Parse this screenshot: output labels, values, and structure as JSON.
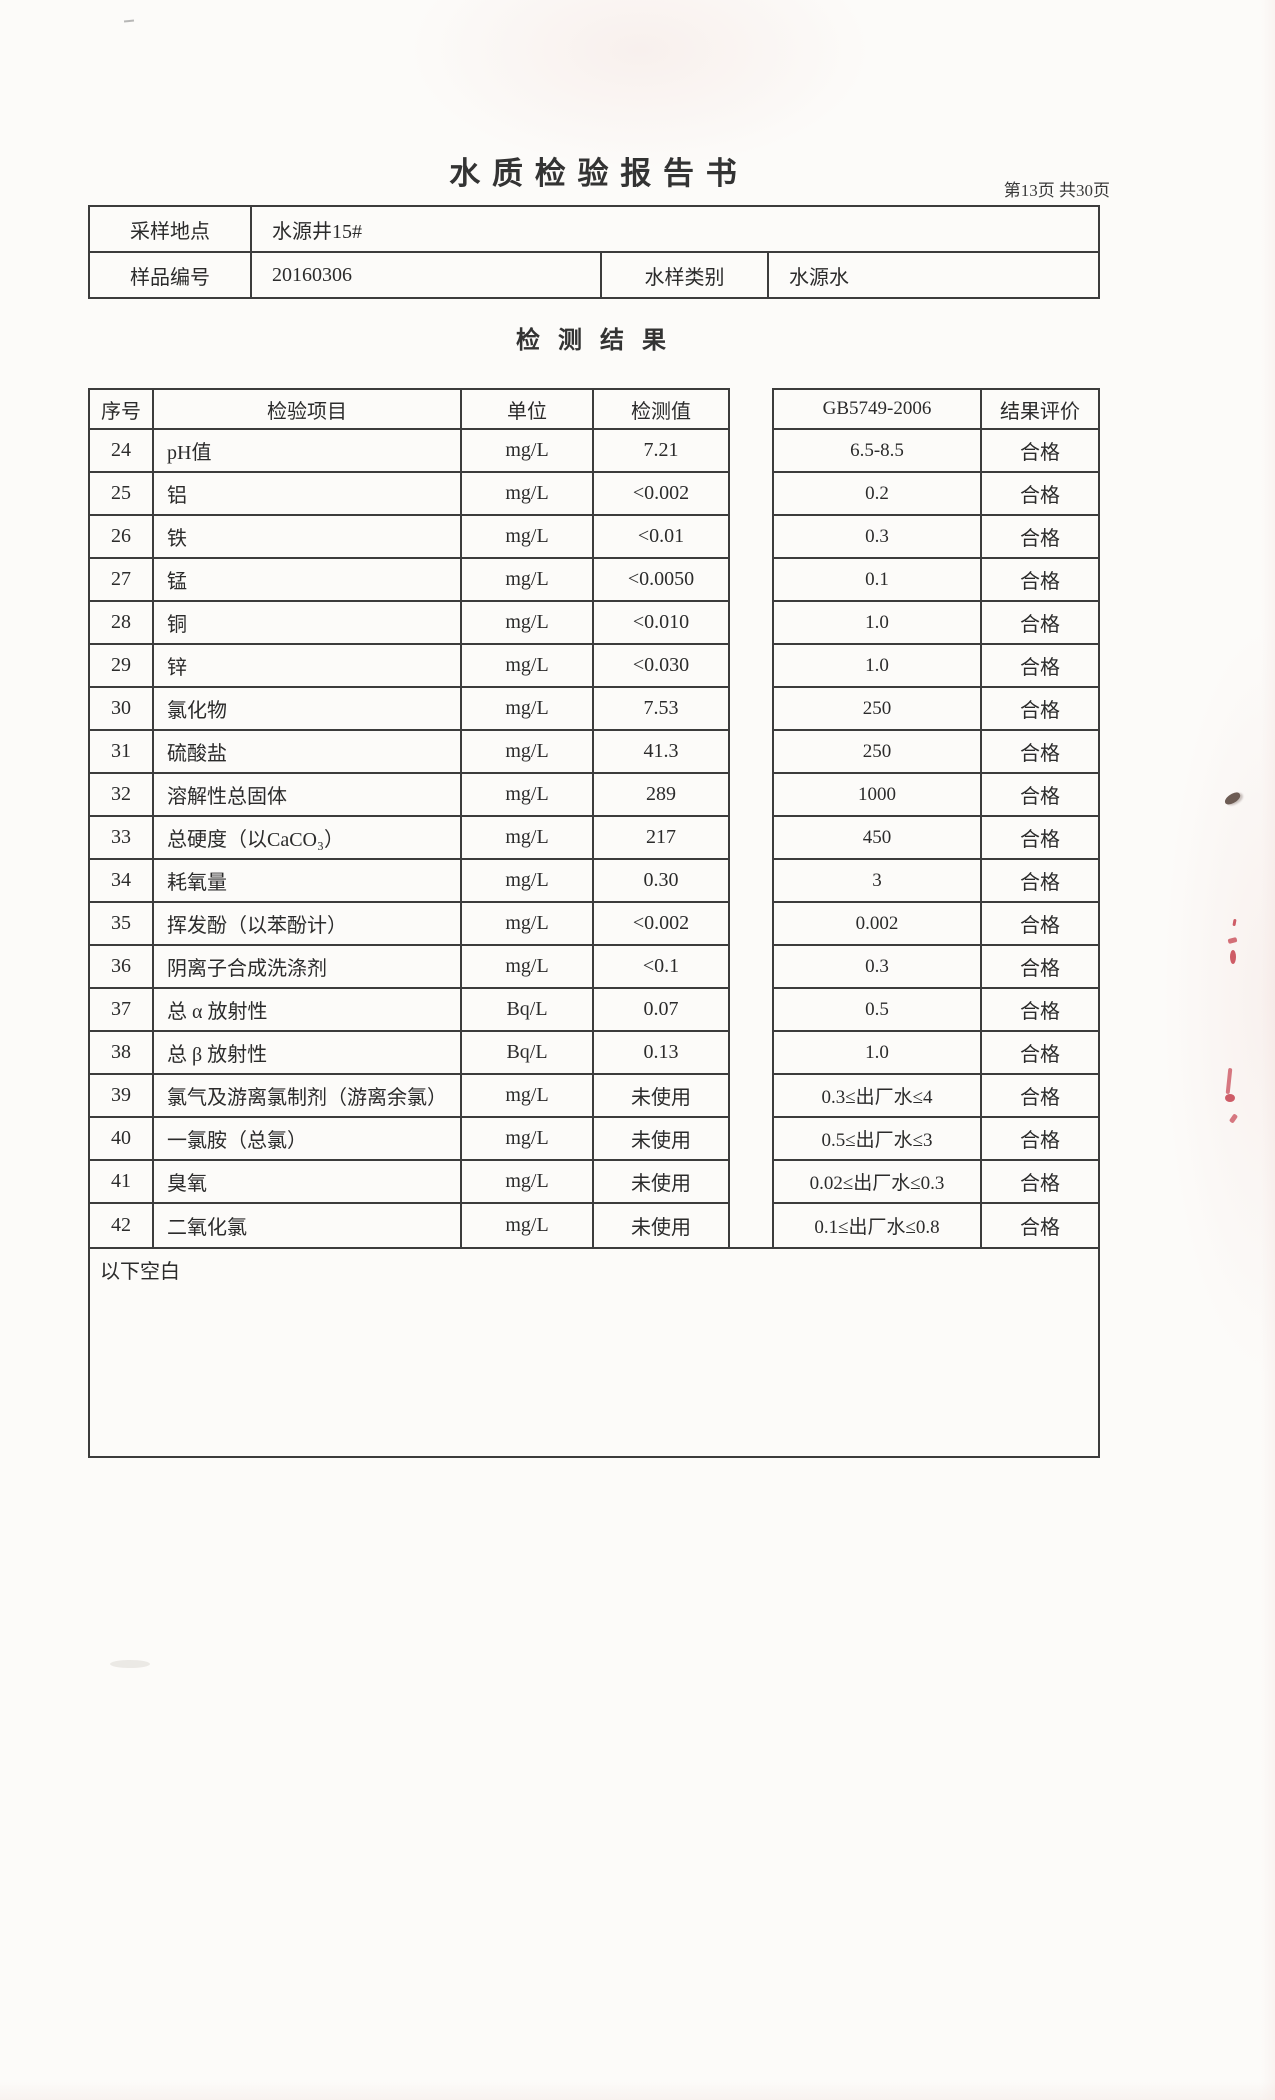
{
  "doc": {
    "title": "水 质 检 验 报 告 书",
    "page_label": "第13页 共30页",
    "section_title": "检 测 结 果",
    "footer_note": "以下空白"
  },
  "info": {
    "sampling_location_label": "采样地点",
    "sampling_location_value": "水源井15#",
    "sample_no_label": "样品编号",
    "sample_no_value": "20160306",
    "sample_type_label": "水样类别",
    "sample_type_value": "水源水"
  },
  "results": {
    "columns": {
      "no": "序号",
      "item": "检验项目",
      "unit": "单位",
      "value": "检测值",
      "standard": "GB5749-2006",
      "verdict": "结果评价"
    },
    "rows": [
      {
        "no": "24",
        "item": "pH值",
        "unit": "mg/L",
        "value": "7.21",
        "standard": "6.5-8.5",
        "verdict": "合格"
      },
      {
        "no": "25",
        "item": "铝",
        "unit": "mg/L",
        "value": "<0.002",
        "standard": "0.2",
        "verdict": "合格"
      },
      {
        "no": "26",
        "item": "铁",
        "unit": "mg/L",
        "value": "<0.01",
        "standard": "0.3",
        "verdict": "合格"
      },
      {
        "no": "27",
        "item": "锰",
        "unit": "mg/L",
        "value": "<0.0050",
        "standard": "0.1",
        "verdict": "合格"
      },
      {
        "no": "28",
        "item": "铜",
        "unit": "mg/L",
        "value": "<0.010",
        "standard": "1.0",
        "verdict": "合格"
      },
      {
        "no": "29",
        "item": "锌",
        "unit": "mg/L",
        "value": "<0.030",
        "standard": "1.0",
        "verdict": "合格"
      },
      {
        "no": "30",
        "item": "氯化物",
        "unit": "mg/L",
        "value": "7.53",
        "standard": "250",
        "verdict": "合格"
      },
      {
        "no": "31",
        "item": "硫酸盐",
        "unit": "mg/L",
        "value": "41.3",
        "standard": "250",
        "verdict": "合格"
      },
      {
        "no": "32",
        "item": "溶解性总固体",
        "unit": "mg/L",
        "value": "289",
        "standard": "1000",
        "verdict": "合格"
      },
      {
        "no": "33",
        "item": "总硬度（以CaCO₃）",
        "unit": "mg/L",
        "value": "217",
        "standard": "450",
        "verdict": "合格"
      },
      {
        "no": "34",
        "item": "耗氧量",
        "unit": "mg/L",
        "value": "0.30",
        "standard": "3",
        "verdict": "合格"
      },
      {
        "no": "35",
        "item": "挥发酚（以苯酚计）",
        "unit": "mg/L",
        "value": "<0.002",
        "standard": "0.002",
        "verdict": "合格"
      },
      {
        "no": "36",
        "item": "阴离子合成洗涤剂",
        "unit": "mg/L",
        "value": "<0.1",
        "standard": "0.3",
        "verdict": "合格"
      },
      {
        "no": "37",
        "item": "总 α 放射性",
        "unit": "Bq/L",
        "value": "0.07",
        "standard": "0.5",
        "verdict": "合格"
      },
      {
        "no": "38",
        "item": "总 β 放射性",
        "unit": "Bq/L",
        "value": "0.13",
        "standard": "1.0",
        "verdict": "合格"
      },
      {
        "no": "39",
        "item": "氯气及游离氯制剂（游离余氯）",
        "unit": "mg/L",
        "value": "未使用",
        "standard": "0.3≤出厂水≤4",
        "verdict": "合格"
      },
      {
        "no": "40",
        "item": "一氯胺（总氯）",
        "unit": "mg/L",
        "value": "未使用",
        "standard": "0.5≤出厂水≤3",
        "verdict": "合格"
      },
      {
        "no": "41",
        "item": "臭氧",
        "unit": "mg/L",
        "value": "未使用",
        "standard": "0.02≤出厂水≤0.3",
        "verdict": "合格"
      },
      {
        "no": "42",
        "item": "二氧化氯",
        "unit": "mg/L",
        "value": "未使用",
        "standard": "0.1≤出厂水≤0.8",
        "verdict": "合格"
      }
    ]
  },
  "colors": {
    "ink": "#2b2b2b",
    "table_line": "#3c3c3c",
    "edit_mark_red": "#c6414e"
  }
}
